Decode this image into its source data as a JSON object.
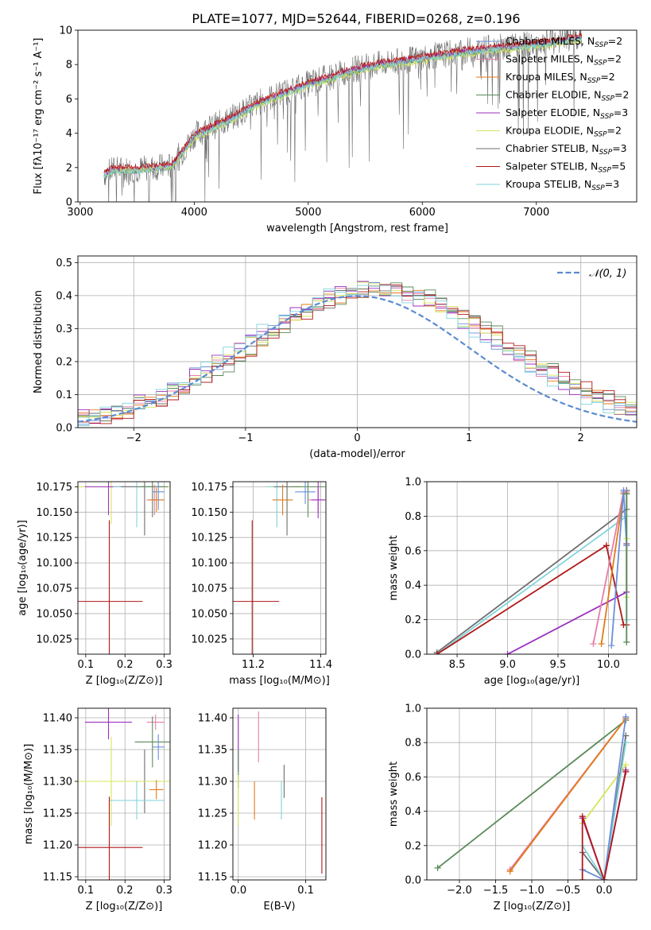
{
  "figure_title": "PLATE=1077, MJD=52644, FIBERID=0268, z=0.196",
  "colors": {
    "chabrier_miles": "#6a8fd8",
    "salpeter_miles": "#e87ca8",
    "kroupa_miles": "#e07b1a",
    "chabrier_elodie": "#5a8a5a",
    "salpeter_elodie": "#9b30c0",
    "kroupa_elodie": "#d6e65a",
    "chabrier_stelib": "#6e6e6e",
    "salpeter_stelib": "#b01818",
    "kroupa_stelib": "#7fd3dc",
    "gaussian": "#5b8bd0",
    "grid": "#b0b0b0"
  },
  "chart_data": [
    {
      "id": "spectrum",
      "type": "line",
      "xlabel": "wavelength [Angstrom, rest frame]",
      "ylabel": "Flux [fλ10⁻¹⁷ erg cm⁻² s⁻¹ A⁻¹]",
      "xlim": [
        2980,
        7880
      ],
      "ylim": [
        0,
        10
      ],
      "xticks": [
        "3000",
        "4000",
        "5000",
        "6000",
        "7000"
      ],
      "yticks": [
        "0",
        "2",
        "4",
        "6",
        "8",
        "10"
      ],
      "grid": false,
      "legend_position": "top-right",
      "series": [
        {
          "name": "Chabrier MILES, N",
          "sub": "SSP",
          "suffix": "=2",
          "color": "chabrier_miles",
          "x": [
            3210,
            3300,
            3500,
            3800,
            3950,
            4000,
            4300,
            4600,
            5000,
            5500,
            6000,
            6500,
            7000,
            7400
          ],
          "y": [
            1.5,
            1.8,
            1.8,
            2.0,
            3.3,
            3.8,
            4.7,
            5.8,
            6.8,
            7.8,
            8.3,
            8.8,
            9.1,
            9.5
          ]
        },
        {
          "name": "Salpeter MILES, N",
          "sub": "SSP",
          "suffix": "=2",
          "color": "salpeter_miles",
          "x": [
            3210,
            3300,
            3500,
            3800,
            3950,
            4000,
            4300,
            4600,
            5000,
            5500,
            6000,
            6500,
            7000,
            7400
          ],
          "y": [
            1.6,
            1.9,
            1.9,
            2.1,
            3.4,
            3.9,
            4.8,
            5.9,
            6.9,
            7.9,
            8.4,
            8.9,
            9.2,
            9.6
          ]
        },
        {
          "name": "Kroupa MILES, N",
          "sub": "SSP",
          "suffix": "=2",
          "color": "kroupa_miles",
          "x": [
            3210,
            3300,
            3500,
            3800,
            3950,
            4000,
            4300,
            4600,
            5000,
            5500,
            6000,
            6500,
            7000,
            7400
          ],
          "y": [
            1.6,
            1.9,
            1.9,
            2.1,
            3.4,
            3.9,
            4.8,
            5.9,
            6.9,
            7.9,
            8.4,
            8.9,
            9.2,
            9.6
          ]
        },
        {
          "name": "Chabrier ELODIE, N",
          "sub": "SSP",
          "suffix": "=2",
          "color": "chabrier_elodie",
          "x": [
            3210,
            3300,
            3500,
            3800,
            3950,
            4000,
            4300,
            4600,
            5000,
            5500,
            6000,
            6500,
            7000,
            7400
          ],
          "y": [
            1.5,
            1.8,
            1.8,
            2.0,
            3.3,
            3.8,
            4.7,
            5.8,
            6.8,
            7.8,
            8.3,
            8.8,
            9.1,
            9.5
          ]
        },
        {
          "name": "Salpeter ELODIE, N",
          "sub": "SSP",
          "suffix": "=3",
          "color": "salpeter_elodie",
          "x": [
            3210,
            3300,
            3500,
            3800,
            3950,
            4000,
            4300,
            4600,
            5000,
            5500,
            6000,
            6500,
            7000,
            7400
          ],
          "y": [
            1.6,
            1.9,
            1.9,
            2.1,
            3.4,
            3.9,
            4.8,
            5.9,
            6.9,
            7.9,
            8.4,
            8.9,
            9.2,
            9.6
          ]
        },
        {
          "name": "Kroupa ELODIE, N",
          "sub": "SSP",
          "suffix": "=2",
          "color": "kroupa_elodie",
          "x": [
            3210,
            3300,
            3500,
            3800,
            3950,
            4000,
            4300,
            4600,
            5000,
            5500,
            6000,
            6500,
            7000,
            7400
          ],
          "y": [
            1.5,
            1.8,
            1.8,
            2.0,
            3.2,
            3.7,
            4.6,
            5.7,
            6.7,
            7.7,
            8.2,
            8.7,
            9.0,
            9.4
          ]
        },
        {
          "name": "Chabrier STELIB, N",
          "sub": "SSP",
          "suffix": "=3",
          "color": "chabrier_stelib",
          "x": [
            3210,
            3300,
            3500,
            3800,
            3950,
            4000,
            4300,
            4600,
            5000,
            5500,
            6000,
            6500,
            7000,
            7400
          ],
          "y": [
            1.6,
            1.9,
            1.9,
            2.1,
            3.4,
            3.9,
            4.8,
            5.9,
            6.9,
            7.9,
            8.4,
            8.9,
            9.2,
            9.6
          ]
        },
        {
          "name": "Salpeter STELIB, N",
          "sub": "SSP",
          "suffix": "=5",
          "color": "salpeter_stelib",
          "x": [
            3210,
            3300,
            3500,
            3800,
            3950,
            4000,
            4300,
            4600,
            5000,
            5500,
            6000,
            6500,
            7000,
            7400
          ],
          "y": [
            1.7,
            2.1,
            2.0,
            2.2,
            3.5,
            4.0,
            4.9,
            6.0,
            7.0,
            8.0,
            8.5,
            9.0,
            9.3,
            9.7
          ]
        },
        {
          "name": "Kroupa STELIB, N",
          "sub": "SSP",
          "suffix": "=3",
          "color": "kroupa_stelib",
          "x": [
            3210,
            3300,
            3500,
            3800,
            3950,
            4000,
            4300,
            4600,
            5000,
            5500,
            6000,
            6500,
            7000,
            7400
          ],
          "y": [
            1.5,
            1.8,
            1.8,
            2.0,
            3.3,
            3.8,
            4.7,
            5.8,
            6.8,
            7.8,
            8.3,
            8.8,
            9.1,
            9.5
          ]
        }
      ]
    },
    {
      "id": "residuals",
      "type": "bar",
      "xlabel": "(data-model)/error",
      "ylabel": "Normed distribution",
      "xlim": [
        -2.5,
        2.5
      ],
      "ylim": [
        0,
        0.52
      ],
      "xticks": [
        "−2",
        "−1",
        "0",
        "1",
        "2"
      ],
      "yticks": [
        "0.0",
        "0.1",
        "0.2",
        "0.3",
        "0.4",
        "0.5"
      ],
      "grid": true,
      "legend_position": "top-right",
      "legend": "𝒩(0, 1)",
      "bin_edges": [
        -2.5,
        2.5
      ],
      "n_bins": 50,
      "gaussian_mean": 0,
      "gaussian_sigma": 1
    },
    {
      "id": "age_vs_z",
      "type": "scatter",
      "xlabel": "Z [log₁₀(Z/Z⊙)]",
      "ylabel": "age  [log₁₀(age/yr)]",
      "xlim": [
        0.08,
        0.315
      ],
      "ylim": [
        10.01,
        10.18
      ],
      "xticks": [
        0.1,
        0.2,
        0.3
      ],
      "yticks": [
        10.025,
        10.05,
        10.075,
        10.1,
        10.125,
        10.15,
        10.175
      ],
      "grid": true,
      "points": [
        {
          "color": "salpeter_stelib",
          "x": 0.16,
          "xerr": 0.085,
          "y": 10.062,
          "yerr": 0.08
        },
        {
          "color": "kroupa_elodie",
          "x": 0.165,
          "xerr": 0.15,
          "y": 10.175,
          "yerr": 0.037
        },
        {
          "color": "salpeter_elodie",
          "x": 0.158,
          "xerr": 0.06,
          "y": 10.175,
          "yerr": 0.028
        },
        {
          "color": "kroupa_stelib",
          "x": 0.23,
          "xerr": 0.06,
          "y": 10.175,
          "yerr": 0.04
        },
        {
          "color": "chabrier_stelib",
          "x": 0.25,
          "xerr": 0.06,
          "y": 10.175,
          "yerr": 0.048
        },
        {
          "color": "chabrier_elodie",
          "x": 0.27,
          "xerr": 0.03,
          "y": 10.175,
          "yerr": 0.03
        },
        {
          "color": "salpeter_miles",
          "x": 0.275,
          "xerr": 0.02,
          "y": 10.162,
          "yerr": 0.015
        },
        {
          "color": "kroupa_miles",
          "x": 0.28,
          "xerr": 0.02,
          "y": 10.162,
          "yerr": 0.012
        },
        {
          "color": "chabrier_miles",
          "x": 0.285,
          "xerr": 0.015,
          "y": 10.17,
          "yerr": 0.018
        }
      ]
    },
    {
      "id": "age_vs_mass",
      "type": "scatter",
      "xlabel": "mass [log₁₀(M/M⊙)]",
      "ylabel": "",
      "xlim": [
        11.14,
        11.415
      ],
      "ylim": [
        10.01,
        10.18
      ],
      "xticks": [
        11.2,
        11.4
      ],
      "yticks": [
        10.025,
        10.05,
        10.075,
        10.1,
        10.125,
        10.15,
        10.175
      ],
      "grid": true,
      "points": [
        {
          "color": "salpeter_stelib",
          "x": 11.197,
          "xerr": 0.08,
          "y": 10.062,
          "yerr": 0.08
        },
        {
          "color": "kroupa_elodie",
          "x": 11.3,
          "xerr": 0.06,
          "y": 10.175,
          "yerr": 0.037
        },
        {
          "color": "kroupa_stelib",
          "x": 11.27,
          "xerr": 0.03,
          "y": 10.175,
          "yerr": 0.04
        },
        {
          "color": "chabrier_stelib",
          "x": 11.3,
          "xerr": 0.04,
          "y": 10.175,
          "yerr": 0.048
        },
        {
          "color": "chabrier_elodie",
          "x": 11.362,
          "xerr": 0.05,
          "y": 10.175,
          "yerr": 0.03
        },
        {
          "color": "kroupa_miles",
          "x": 11.287,
          "xerr": 0.03,
          "y": 10.162,
          "yerr": 0.015
        },
        {
          "color": "chabrier_miles",
          "x": 11.354,
          "xerr": 0.03,
          "y": 10.17,
          "yerr": 0.012
        },
        {
          "color": "salpeter_miles",
          "x": 11.392,
          "xerr": 0.03,
          "y": 10.162,
          "yerr": 0.012
        },
        {
          "color": "salpeter_elodie",
          "x": 11.392,
          "xerr": 0.02,
          "y": 10.162,
          "yerr": 0.018
        }
      ]
    },
    {
      "id": "massweight_vs_age",
      "type": "line",
      "xlabel": "age  [log₁₀(age/yr)]",
      "ylabel": "mass weight",
      "xlim": [
        8.2,
        10.28
      ],
      "ylim": [
        0,
        1
      ],
      "xticks": [
        8.5,
        9.0,
        9.5,
        10.0
      ],
      "yticks": [
        0.0,
        0.2,
        0.4,
        0.6,
        0.8,
        1.0
      ],
      "grid": true,
      "series": [
        {
          "color": "chabrier_stelib",
          "x": [
            8.3,
            10.18,
            10.18
          ],
          "y": [
            0.01,
            0.84,
            0.95
          ]
        },
        {
          "color": "kroupa_stelib",
          "x": [
            8.3,
            10.18,
            10.18
          ],
          "y": [
            0.0,
            0.8,
            0.2
          ]
        },
        {
          "color": "salpeter_stelib",
          "x": [
            8.3,
            9.98,
            10.15,
            10.18
          ],
          "y": [
            0.0,
            0.63,
            0.17,
            0.17
          ]
        },
        {
          "color": "salpeter_elodie",
          "x": [
            9.0,
            10.18,
            10.18
          ],
          "y": [
            0.0,
            0.36,
            0.64
          ]
        },
        {
          "color": "salpeter_miles",
          "x": [
            9.85,
            10.15,
            10.18
          ],
          "y": [
            0.06,
            0.94,
            0.94
          ]
        },
        {
          "color": "kroupa_miles",
          "x": [
            9.93,
            10.15,
            10.18
          ],
          "y": [
            0.06,
            0.93,
            0.93
          ]
        },
        {
          "color": "chabrier_miles",
          "x": [
            10.03,
            10.15,
            10.18
          ],
          "y": [
            0.05,
            0.95,
            0.63
          ]
        },
        {
          "color": "kroupa_elodie",
          "x": [
            10.18,
            10.18
          ],
          "y": [
            0.33,
            0.67
          ]
        },
        {
          "color": "chabrier_elodie",
          "x": [
            10.18,
            10.18
          ],
          "y": [
            0.07,
            0.93
          ]
        }
      ]
    },
    {
      "id": "mass_vs_z",
      "type": "scatter",
      "xlabel": "Z [log₁₀(Z/Z⊙)]",
      "ylabel": "mass [log₁₀(M/M⊙)]",
      "xlim": [
        0.08,
        0.315
      ],
      "ylim": [
        11.145,
        11.415
      ],
      "xticks": [
        0.1,
        0.2,
        0.3
      ],
      "yticks": [
        11.15,
        11.2,
        11.25,
        11.3,
        11.35,
        11.4
      ],
      "grid": true,
      "points": [
        {
          "color": "salpeter_elodie",
          "x": 0.158,
          "xerr": 0.06,
          "y": 11.393,
          "yerr": 0.027
        },
        {
          "color": "salpeter_miles",
          "x": 0.278,
          "xerr": 0.022,
          "y": 11.393,
          "yerr": 0.012
        },
        {
          "color": "chabrier_elodie",
          "x": 0.27,
          "xerr": 0.045,
          "y": 11.362,
          "yerr": 0.04
        },
        {
          "color": "chabrier_miles",
          "x": 0.285,
          "xerr": 0.015,
          "y": 11.354,
          "yerr": 0.02
        },
        {
          "color": "chabrier_stelib",
          "x": 0.25,
          "xerr": 0.05,
          "y": 11.3,
          "yerr": 0.05
        },
        {
          "color": "kroupa_elodie",
          "x": 0.165,
          "xerr": 0.15,
          "y": 11.3,
          "yerr": 0.07
        },
        {
          "color": "kroupa_miles",
          "x": 0.28,
          "xerr": 0.018,
          "y": 11.287,
          "yerr": 0.015
        },
        {
          "color": "kroupa_stelib",
          "x": 0.23,
          "xerr": 0.07,
          "y": 11.27,
          "yerr": 0.03
        },
        {
          "color": "salpeter_stelib",
          "x": 0.16,
          "xerr": 0.085,
          "y": 11.196,
          "yerr": 0.08
        }
      ]
    },
    {
      "id": "mass_vs_ebv",
      "type": "scatter",
      "xlabel": "E(B-V)",
      "ylabel": "",
      "xlim": [
        -0.008,
        0.13
      ],
      "ylim": [
        11.145,
        11.415
      ],
      "xticks": [
        0.0,
        0.1
      ],
      "yticks": [
        11.15,
        11.2,
        11.25,
        11.3,
        11.35,
        11.4
      ],
      "grid": true,
      "points": [
        {
          "color": "salpeter_elodie",
          "x": 0.0,
          "y": 11.36,
          "yerr": 0.045
        },
        {
          "color": "chabrier_elodie",
          "x": 0.0,
          "y": 11.32,
          "yerr": 0.03
        },
        {
          "color": "kroupa_elodie",
          "x": 0.0,
          "y": 11.27,
          "yerr": 0.04
        },
        {
          "color": "salpeter_miles",
          "x": 0.03,
          "y": 11.37,
          "yerr": 0.04
        },
        {
          "color": "kroupa_miles",
          "x": 0.024,
          "y": 11.27,
          "yerr": 0.03
        },
        {
          "color": "chabrier_stelib",
          "x": 0.068,
          "y": 11.3,
          "yerr": 0.026
        },
        {
          "color": "kroupa_stelib",
          "x": 0.064,
          "y": 11.27,
          "yerr": 0.03
        },
        {
          "color": "salpeter_stelib",
          "x": 0.124,
          "y": 11.215,
          "yerr": 0.06
        }
      ]
    },
    {
      "id": "massweight_vs_z",
      "type": "line",
      "xlabel": "Z [log₁₀(Z/Z⊙)]",
      "ylabel": "mass weight",
      "xlim": [
        -2.45,
        0.45
      ],
      "ylim": [
        0,
        1
      ],
      "xticks": [
        -2.0,
        -1.5,
        -1.0,
        -0.5,
        0.0
      ],
      "yticks": [
        0.0,
        0.2,
        0.4,
        0.6,
        0.8,
        1.0
      ],
      "grid": true,
      "series": [
        {
          "color": "chabrier_elodie",
          "x": [
            -2.3,
            0.3
          ],
          "y": [
            0.07,
            0.93
          ]
        },
        {
          "color": "salpeter_miles",
          "x": [
            -1.3,
            0.3
          ],
          "y": [
            0.06,
            0.94
          ]
        },
        {
          "color": "kroupa_miles",
          "x": [
            -1.3,
            0.3
          ],
          "y": [
            0.05,
            0.94
          ]
        },
        {
          "color": "kroupa_elodie",
          "x": [
            -0.3,
            0.3
          ],
          "y": [
            0.33,
            0.67
          ]
        },
        {
          "color": "salpeter_elodie",
          "x": [
            -0.3,
            0.0,
            0.3
          ],
          "y": [
            0.36,
            0.0,
            0.64
          ]
        },
        {
          "color": "chabrier_stelib",
          "x": [
            -0.3,
            0.0,
            0.3
          ],
          "y": [
            0.16,
            0.0,
            0.84
          ]
        },
        {
          "color": "kroupa_stelib",
          "x": [
            -0.3,
            0.0,
            0.3
          ],
          "y": [
            0.2,
            0.0,
            0.8
          ]
        },
        {
          "color": "chabrier_miles",
          "x": [
            -0.3,
            0.0,
            0.3
          ],
          "y": [
            0.06,
            0.0,
            0.95
          ]
        },
        {
          "color": "salpeter_stelib",
          "x": [
            -0.3,
            -0.3,
            0.0,
            0.3
          ],
          "y": [
            0.0,
            0.37,
            0.0,
            0.63
          ]
        }
      ]
    }
  ]
}
